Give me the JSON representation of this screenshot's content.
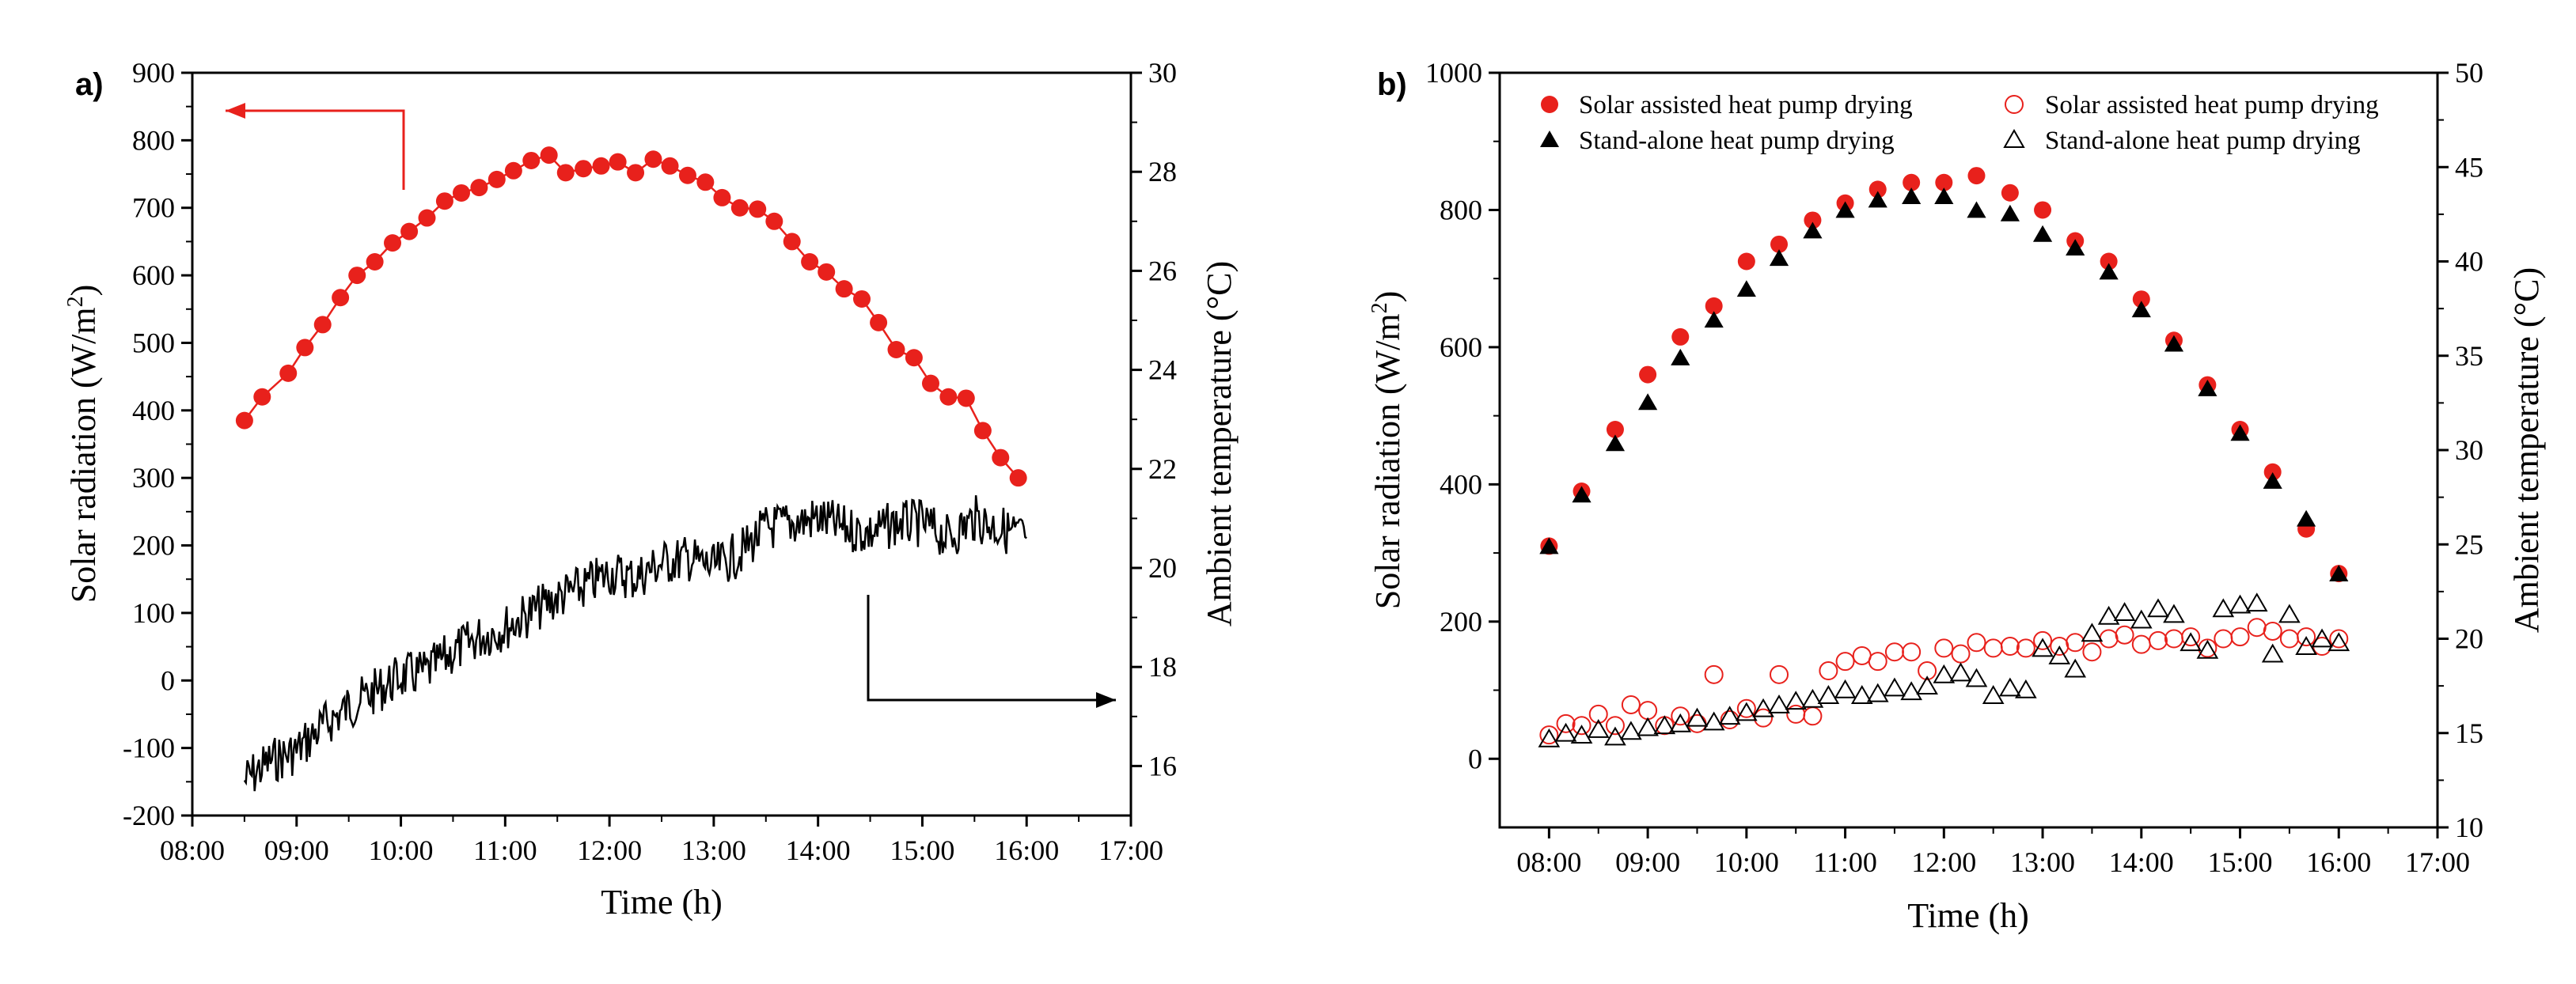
{
  "chart_data": [
    {
      "type": "scatter",
      "panel_label": "a)",
      "title": "",
      "xlabel": "Time (h)",
      "ylabel_left": {
        "pre": "Solar radiation (W/m",
        "sup": "2",
        "post": ")"
      },
      "ylabel_right": "Ambient temperature (°C)",
      "x_ticks": [
        "08:00",
        "09:00",
        "10:00",
        "11:00",
        "12:00",
        "13:00",
        "14:00",
        "15:00",
        "16:00",
        "17:00"
      ],
      "xlim": [
        8,
        17
      ],
      "ylim_left": [
        -200,
        900
      ],
      "yticks_left": [
        -200,
        -100,
        0,
        100,
        200,
        300,
        400,
        500,
        600,
        700,
        800,
        900
      ],
      "ylim_right": [
        15,
        30
      ],
      "yticks_right": [
        16,
        18,
        20,
        22,
        24,
        26,
        28,
        30
      ],
      "arrows": [
        "left arrow from solar radiation curve pointing to left axis",
        "right arrow from ambient temperature curve pointing to right axis"
      ],
      "series": [
        {
          "name": "Solar radiation",
          "axis": "left",
          "color": "#e8211c",
          "marker": "filled-circle",
          "x": [
            8.5,
            8.67,
            8.92,
            9.08,
            9.25,
            9.42,
            9.58,
            9.75,
            9.92,
            10.08,
            10.25,
            10.42,
            10.58,
            10.75,
            10.92,
            11.08,
            11.25,
            11.42,
            11.58,
            11.75,
            11.92,
            12.08,
            12.25,
            12.42,
            12.58,
            12.75,
            12.92,
            13.08,
            13.25,
            13.42,
            13.58,
            13.75,
            13.92,
            14.08,
            14.25,
            14.42,
            14.58,
            14.75,
            14.92,
            15.08,
            15.25,
            15.42,
            15.58,
            15.75,
            15.92
          ],
          "y": [
            385,
            420,
            455,
            493,
            527,
            567,
            600,
            620,
            648,
            665,
            685,
            710,
            722,
            730,
            742,
            755,
            770,
            778,
            752,
            758,
            762,
            768,
            752,
            772,
            762,
            748,
            738,
            715,
            700,
            698,
            680,
            650,
            620,
            605,
            580,
            565,
            530,
            490,
            478,
            440,
            420,
            418,
            370,
            330,
            300
          ]
        },
        {
          "name": "Ambient temperature",
          "axis": "right",
          "color": "#000000",
          "marker": "line",
          "x": [
            8.5,
            8.75,
            9.0,
            9.25,
            9.5,
            9.75,
            10.0,
            10.25,
            10.5,
            10.75,
            11.0,
            11.25,
            11.5,
            11.75,
            12.0,
            12.25,
            12.5,
            12.75,
            13.0,
            13.25,
            13.5,
            13.75,
            14.0,
            14.25,
            14.5,
            14.75,
            15.0,
            15.25,
            15.5,
            15.75,
            16.0
          ],
          "y": [
            15.7,
            16.1,
            16.3,
            16.8,
            17.2,
            17.5,
            17.8,
            17.9,
            18.3,
            18.6,
            18.8,
            19.1,
            19.4,
            19.6,
            19.9,
            19.8,
            20.1,
            20.2,
            20.0,
            20.3,
            20.8,
            20.9,
            21.0,
            20.8,
            20.7,
            20.9,
            20.9,
            20.6,
            21.0,
            20.8,
            20.6
          ]
        }
      ]
    },
    {
      "type": "scatter",
      "panel_label": "b)",
      "title": "",
      "xlabel": "Time (h)",
      "ylabel_left": {
        "pre": "Solar radiation (W/m",
        "sup": "2",
        "post": ")"
      },
      "ylabel_right": "Ambient temperature (°C)",
      "x_ticks": [
        "08:00",
        "09:00",
        "10:00",
        "11:00",
        "12:00",
        "13:00",
        "14:00",
        "15:00",
        "16:00",
        "17:00"
      ],
      "xlim": [
        7.5,
        17
      ],
      "ylim_left": [
        -100,
        1000
      ],
      "yticks_left": [
        0,
        200,
        400,
        600,
        800,
        1000
      ],
      "ylim_right": [
        10,
        50
      ],
      "yticks_right": [
        10,
        15,
        20,
        25,
        30,
        35,
        40,
        45,
        50
      ],
      "legend": [
        "Solar assisted heat pump drying",
        "Stand-alone heat pump drying",
        "Solar assisted heat pump drying",
        "Stand-alone heat pump drying"
      ],
      "series": [
        {
          "name": "Solar assisted heat pump drying",
          "axis": "left",
          "color": "#e8211c",
          "marker": "filled-circle",
          "x": [
            8.0,
            8.33,
            8.67,
            9.0,
            9.33,
            9.67,
            10.0,
            10.33,
            10.67,
            11.0,
            11.33,
            11.67,
            12.0,
            12.33,
            12.67,
            13.0,
            13.33,
            13.67,
            14.0,
            14.33,
            14.67,
            15.0,
            15.33,
            15.67,
            16.0
          ],
          "y": [
            310,
            390,
            480,
            560,
            615,
            660,
            725,
            750,
            785,
            810,
            830,
            840,
            840,
            850,
            825,
            800,
            755,
            725,
            670,
            610,
            545,
            480,
            418,
            335,
            270
          ]
        },
        {
          "name": "Stand-alone heat pump drying",
          "axis": "left",
          "color": "#000000",
          "marker": "filled-triangle",
          "x": [
            8.0,
            8.33,
            8.67,
            9.0,
            9.33,
            9.67,
            10.0,
            10.33,
            10.67,
            11.0,
            11.33,
            11.67,
            12.0,
            12.33,
            12.67,
            13.0,
            13.33,
            13.67,
            14.0,
            14.33,
            14.67,
            15.0,
            15.33,
            15.67,
            16.0
          ],
          "y": [
            310,
            385,
            460,
            520,
            585,
            640,
            685,
            730,
            770,
            800,
            815,
            820,
            820,
            800,
            795,
            765,
            745,
            710,
            655,
            605,
            540,
            475,
            405,
            350,
            270
          ]
        },
        {
          "name": "Solar assisted heat pump drying",
          "axis": "right",
          "color": "#e8211c",
          "marker": "open-circle",
          "x": [
            8.0,
            8.17,
            8.33,
            8.5,
            8.67,
            8.83,
            9.0,
            9.17,
            9.33,
            9.5,
            9.67,
            9.83,
            10.0,
            10.17,
            10.33,
            10.5,
            10.67,
            10.83,
            11.0,
            11.17,
            11.33,
            11.5,
            11.67,
            11.83,
            12.0,
            12.17,
            12.33,
            12.5,
            12.67,
            12.83,
            13.0,
            13.17,
            13.33,
            13.5,
            13.67,
            13.83,
            14.0,
            14.17,
            14.33,
            14.5,
            14.67,
            14.83,
            15.0,
            15.17,
            15.33,
            15.5,
            15.67,
            15.83,
            16.0
          ],
          "y": [
            14.9,
            15.5,
            15.4,
            16.0,
            15.4,
            16.5,
            16.2,
            15.4,
            15.9,
            15.5,
            18.1,
            15.7,
            16.3,
            15.8,
            18.1,
            16.0,
            15.9,
            18.3,
            18.8,
            19.1,
            18.8,
            19.3,
            19.3,
            18.3,
            19.5,
            19.2,
            19.8,
            19.5,
            19.6,
            19.5,
            19.9,
            19.6,
            19.8,
            19.3,
            20.0,
            20.2,
            19.7,
            19.9,
            20.0,
            20.1,
            19.5,
            20.0,
            20.1,
            20.6,
            20.4,
            20.0,
            20.1,
            19.6,
            20.0
          ]
        },
        {
          "name": "Stand-alone heat pump drying",
          "axis": "right",
          "color": "#000000",
          "marker": "open-triangle",
          "x": [
            8.0,
            8.17,
            8.33,
            8.5,
            8.67,
            8.83,
            9.0,
            9.17,
            9.33,
            9.5,
            9.67,
            9.83,
            10.0,
            10.17,
            10.33,
            10.5,
            10.67,
            10.83,
            11.0,
            11.17,
            11.33,
            11.5,
            11.67,
            11.83,
            12.0,
            12.17,
            12.33,
            12.5,
            12.67,
            12.83,
            13.0,
            13.17,
            13.33,
            13.5,
            13.67,
            13.83,
            14.0,
            14.17,
            14.33,
            14.5,
            14.67,
            14.83,
            15.0,
            15.17,
            15.33,
            15.5,
            15.67,
            15.83,
            16.0
          ],
          "y": [
            14.7,
            15.0,
            14.9,
            15.2,
            14.8,
            15.1,
            15.3,
            15.4,
            15.5,
            15.8,
            15.6,
            15.9,
            16.1,
            16.3,
            16.5,
            16.7,
            16.8,
            17.0,
            17.3,
            17.0,
            17.1,
            17.4,
            17.2,
            17.5,
            18.1,
            18.2,
            17.9,
            17.0,
            17.4,
            17.3,
            19.5,
            19.1,
            18.4,
            20.3,
            21.2,
            21.4,
            21.0,
            21.6,
            21.3,
            19.8,
            19.4,
            21.6,
            21.8,
            21.9,
            19.2,
            21.3,
            19.6,
            20.0,
            19.8
          ]
        }
      ]
    }
  ]
}
